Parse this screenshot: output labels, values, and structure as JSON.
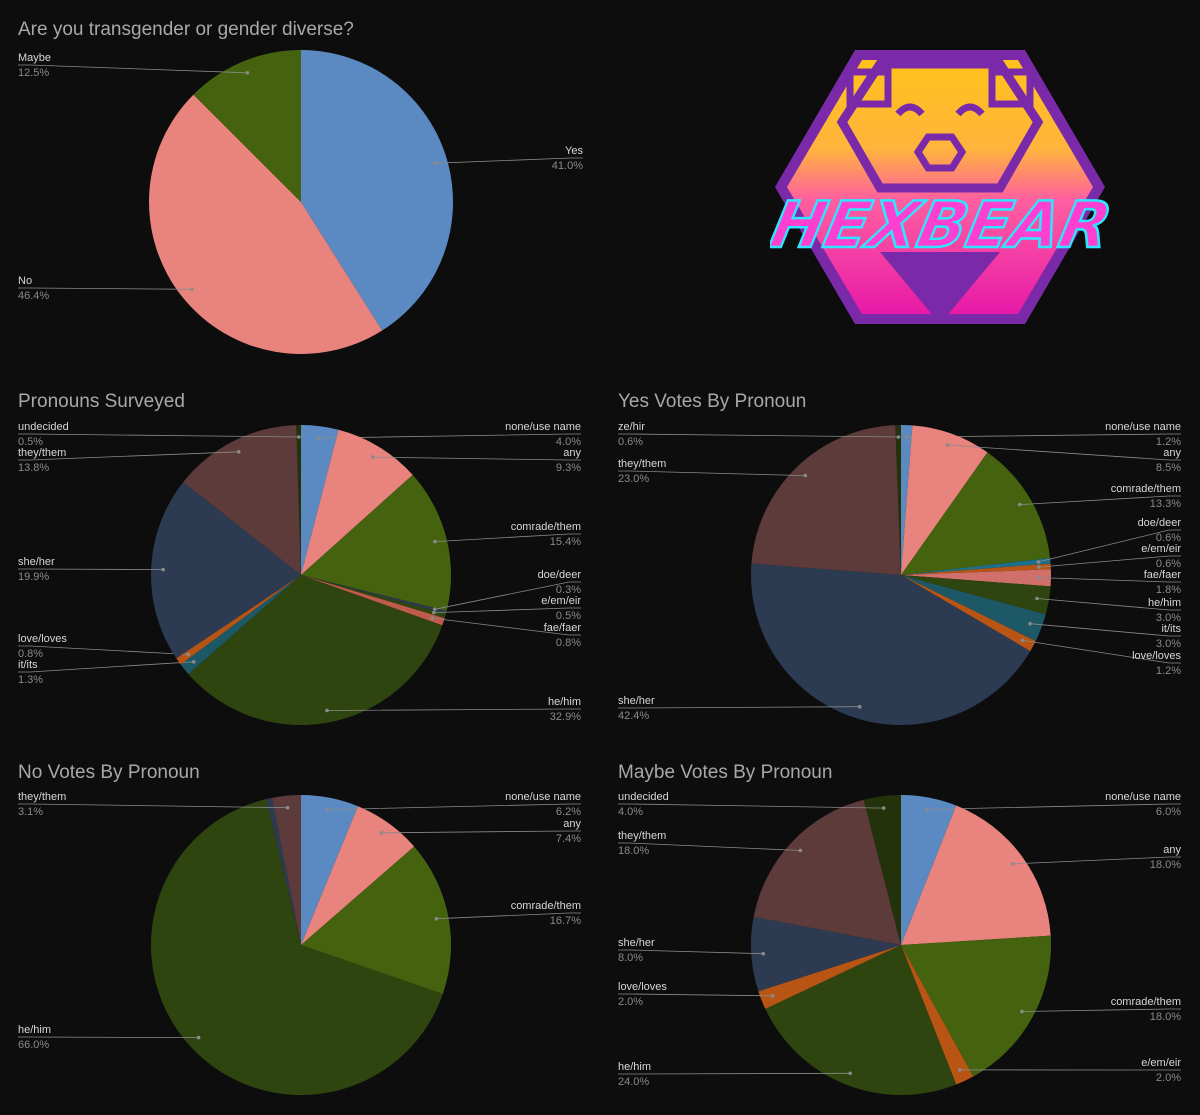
{
  "colors": {
    "background": "#0d0d0d",
    "blue": "#5b8ac2",
    "salmon": "#e8837e",
    "green": "#45630f",
    "navy": "#2c3b52",
    "darkolive": "#2f450f",
    "brownred": "#5c3b3a",
    "orange": "#b85514",
    "teal": "#1d5866",
    "darkgreen2": "#23320a"
  },
  "logo": {
    "text": "HEXBEAR",
    "icon": "hexbear-logo"
  },
  "chart_data": [
    {
      "id": "transgender",
      "type": "pie",
      "title": "Are you transgender or gender diverse?",
      "slices": [
        {
          "name": "Yes",
          "pct": "41.0%",
          "value": 41.0,
          "color": "#5b8ac2",
          "side": "right"
        },
        {
          "name": "No",
          "pct": "46.4%",
          "value": 46.4,
          "color": "#e8837e",
          "side": "left"
        },
        {
          "name": "Maybe",
          "pct": "12.5%",
          "value": 12.5,
          "color": "#45630f",
          "side": "left"
        }
      ]
    },
    {
      "id": "pronouns",
      "type": "pie",
      "title": "Pronouns Surveyed",
      "slices": [
        {
          "name": "none/use name",
          "pct": "4.0%",
          "value": 4.0,
          "color": "#5b8ac2",
          "side": "right"
        },
        {
          "name": "any",
          "pct": "9.3%",
          "value": 9.3,
          "color": "#e8837e",
          "side": "right"
        },
        {
          "name": "comrade/them",
          "pct": "15.4%",
          "value": 15.4,
          "color": "#45630f",
          "side": "right"
        },
        {
          "name": "doe/deer",
          "pct": "0.3%",
          "value": 0.3,
          "color": "#2c3b52",
          "side": "right"
        },
        {
          "name": "e/em/eir",
          "pct": "0.5%",
          "value": 0.5,
          "color": "#2f450f",
          "side": "right"
        },
        {
          "name": "fae/faer",
          "pct": "0.8%",
          "value": 0.8,
          "color": "#c05a4a",
          "side": "right"
        },
        {
          "name": "he/him",
          "pct": "32.9%",
          "value": 32.9,
          "color": "#2f450f",
          "side": "right"
        },
        {
          "name": "it/its",
          "pct": "1.3%",
          "value": 1.3,
          "color": "#1d5866",
          "side": "left"
        },
        {
          "name": "love/loves",
          "pct": "0.8%",
          "value": 0.8,
          "color": "#b85514",
          "side": "left"
        },
        {
          "name": "she/her",
          "pct": "19.9%",
          "value": 19.9,
          "color": "#2c3b52",
          "side": "left"
        },
        {
          "name": "they/them",
          "pct": "13.8%",
          "value": 13.8,
          "color": "#5c3b3a",
          "side": "left"
        },
        {
          "name": "undecided",
          "pct": "0.5%",
          "value": 0.5,
          "color": "#23320a",
          "side": "left"
        }
      ]
    },
    {
      "id": "yes-votes",
      "type": "pie",
      "title": "Yes Votes By Pronoun",
      "slices": [
        {
          "name": "none/use name",
          "pct": "1.2%",
          "value": 1.2,
          "color": "#5b8ac2",
          "side": "right"
        },
        {
          "name": "any",
          "pct": "8.5%",
          "value": 8.5,
          "color": "#e8837e",
          "side": "right"
        },
        {
          "name": "comrade/them",
          "pct": "13.3%",
          "value": 13.3,
          "color": "#45630f",
          "side": "right"
        },
        {
          "name": "doe/deer",
          "pct": "0.6%",
          "value": 0.6,
          "color": "#1d6f8a",
          "side": "right"
        },
        {
          "name": "e/em/eir",
          "pct": "0.6%",
          "value": 0.6,
          "color": "#b85514",
          "side": "right"
        },
        {
          "name": "fae/faer",
          "pct": "1.8%",
          "value": 1.8,
          "color": "#d0706a",
          "side": "right"
        },
        {
          "name": "he/him",
          "pct": "3.0%",
          "value": 3.0,
          "color": "#2f450f",
          "side": "right"
        },
        {
          "name": "it/its",
          "pct": "3.0%",
          "value": 3.0,
          "color": "#1d5866",
          "side": "right"
        },
        {
          "name": "love/loves",
          "pct": "1.2%",
          "value": 1.2,
          "color": "#b85514",
          "side": "right"
        },
        {
          "name": "she/her",
          "pct": "42.4%",
          "value": 42.4,
          "color": "#2c3b52",
          "side": "left"
        },
        {
          "name": "they/them",
          "pct": "23.0%",
          "value": 23.0,
          "color": "#5c3b3a",
          "side": "left"
        },
        {
          "name": "ze/hir",
          "pct": "0.6%",
          "value": 0.6,
          "color": "#23320a",
          "side": "left"
        }
      ]
    },
    {
      "id": "no-votes",
      "type": "pie",
      "title": "No Votes By Pronoun",
      "slices": [
        {
          "name": "none/use name",
          "pct": "6.2%",
          "value": 6.2,
          "color": "#5b8ac2",
          "side": "right"
        },
        {
          "name": "any",
          "pct": "7.4%",
          "value": 7.4,
          "color": "#e8837e",
          "side": "right"
        },
        {
          "name": "comrade/them",
          "pct": "16.7%",
          "value": 16.7,
          "color": "#45630f",
          "side": "right"
        },
        {
          "name": "he/him",
          "pct": "66.0%",
          "value": 66.0,
          "color": "#2f450f",
          "side": "left"
        },
        {
          "name": "",
          "pct": "",
          "value": 0.6,
          "color": "#2c3b52",
          "side": "none"
        },
        {
          "name": "they/them",
          "pct": "3.1%",
          "value": 3.1,
          "color": "#5c3b3a",
          "side": "left"
        }
      ]
    },
    {
      "id": "maybe-votes",
      "type": "pie",
      "title": "Maybe Votes By Pronoun",
      "slices": [
        {
          "name": "none/use name",
          "pct": "6.0%",
          "value": 6.0,
          "color": "#5b8ac2",
          "side": "right"
        },
        {
          "name": "any",
          "pct": "18.0%",
          "value": 18.0,
          "color": "#e8837e",
          "side": "right"
        },
        {
          "name": "comrade/them",
          "pct": "18.0%",
          "value": 18.0,
          "color": "#45630f",
          "side": "right"
        },
        {
          "name": "e/em/eir",
          "pct": "2.0%",
          "value": 2.0,
          "color": "#b85514",
          "side": "right"
        },
        {
          "name": "he/him",
          "pct": "24.0%",
          "value": 24.0,
          "color": "#2f450f",
          "side": "left"
        },
        {
          "name": "love/loves",
          "pct": "2.0%",
          "value": 2.0,
          "color": "#b85514",
          "side": "left"
        },
        {
          "name": "she/her",
          "pct": "8.0%",
          "value": 8.0,
          "color": "#2c3b52",
          "side": "left"
        },
        {
          "name": "they/them",
          "pct": "18.0%",
          "value": 18.0,
          "color": "#5c3b3a",
          "side": "left"
        },
        {
          "name": "undecided",
          "pct": "4.0%",
          "value": 4.0,
          "color": "#23320a",
          "side": "left"
        }
      ]
    }
  ]
}
